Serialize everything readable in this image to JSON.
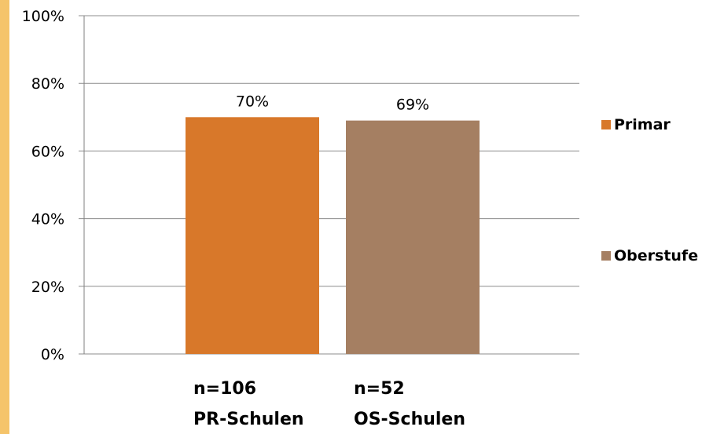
{
  "colors": {
    "stripe": "#F5C46A",
    "grid": "#8C8C8C",
    "axis": "#7F7F7F"
  },
  "chart_data": {
    "type": "bar",
    "ylim": [
      0,
      100
    ],
    "ytick_values": [
      0,
      20,
      40,
      60,
      80,
      100
    ],
    "ytick_labels": [
      "0%",
      "20%",
      "40%",
      "60%",
      "80%",
      "100%"
    ],
    "grid": true,
    "legend_position": "right",
    "bars": [
      {
        "series": "Primar",
        "value": 70,
        "data_label": "70%",
        "color": "#D8782A",
        "category_line1": "n=106",
        "category_line2": "PR-Schulen"
      },
      {
        "series": "Oberstufe",
        "value": 69,
        "data_label": "69%",
        "color": "#A57F62",
        "category_line1": "n=52",
        "category_line2": "OS-Schulen"
      }
    ],
    "series": [
      {
        "name": "Primar",
        "color": "#D8782A"
      },
      {
        "name": "Oberstufe",
        "color": "#A57F62"
      }
    ]
  }
}
